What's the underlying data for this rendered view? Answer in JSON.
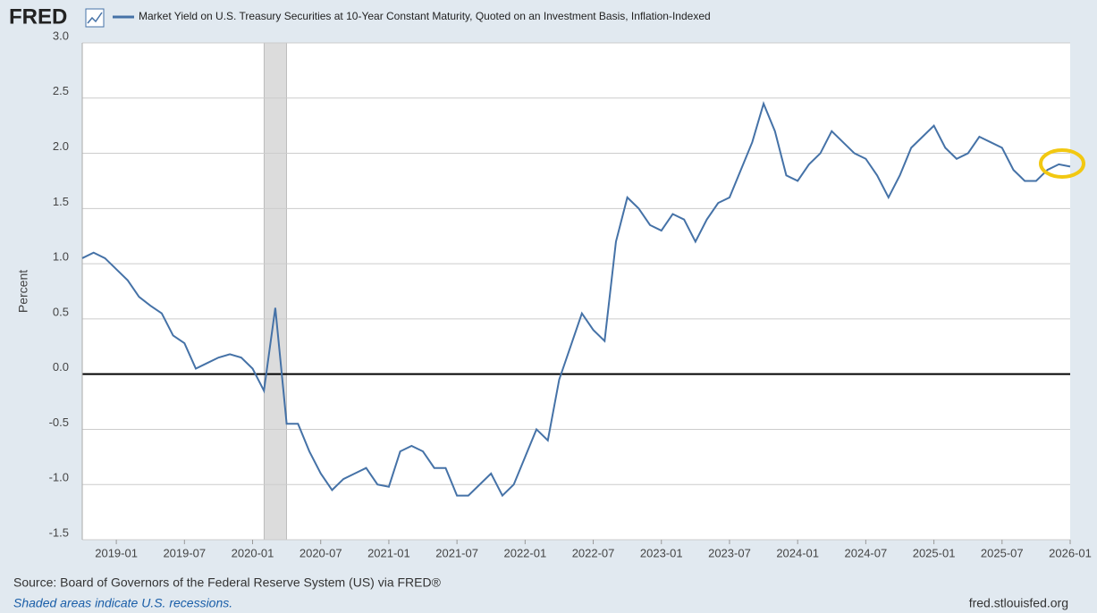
{
  "chart_data": {
    "type": "line",
    "brand": "FRED",
    "title": "Market Yield on U.S. Treasury Securities at 10-Year Constant Maturity, Quoted on an Investment Basis, Inflation-Indexed",
    "y_label": "Percent",
    "source": "Source: Board of Governors of the Federal Reserve System (US) via FRED®",
    "note": "Shaded areas indicate U.S. recessions.",
    "site": "fred.stlouisfed.org",
    "x": [
      "2018-10",
      "2018-11",
      "2018-12",
      "2019-01",
      "2019-02",
      "2019-03",
      "2019-04",
      "2019-05",
      "2019-06",
      "2019-07",
      "2019-08",
      "2019-09",
      "2019-10",
      "2019-11",
      "2019-12",
      "2020-01",
      "2020-02",
      "2020-03",
      "2020-04",
      "2020-05",
      "2020-06",
      "2020-07",
      "2020-08",
      "2020-09",
      "2020-10",
      "2020-11",
      "2020-12",
      "2021-01",
      "2021-02",
      "2021-03",
      "2021-04",
      "2021-05",
      "2021-06",
      "2021-07",
      "2021-08",
      "2021-09",
      "2021-10",
      "2021-11",
      "2021-12",
      "2022-01",
      "2022-02",
      "2022-03",
      "2022-04",
      "2022-05",
      "2022-06",
      "2022-07",
      "2022-08",
      "2022-09",
      "2022-10",
      "2022-11",
      "2022-12",
      "2023-01",
      "2023-02",
      "2023-03",
      "2023-04",
      "2023-05",
      "2023-06",
      "2023-07",
      "2023-08",
      "2023-09",
      "2023-10",
      "2023-11",
      "2023-12",
      "2024-01",
      "2024-02",
      "2024-03",
      "2024-04",
      "2024-05",
      "2024-06",
      "2024-07",
      "2024-08",
      "2024-09",
      "2024-10",
      "2024-11",
      "2024-12",
      "2025-01",
      "2025-02",
      "2025-03",
      "2025-04",
      "2025-05",
      "2025-06",
      "2025-07",
      "2025-08",
      "2025-09",
      "2025-10",
      "2025-11",
      "2025-12",
      "2026-01"
    ],
    "series": [
      {
        "name": "Market Yield on U.S. Treasury Securities at 10-Year Constant Maturity, Quoted on an Investment Basis, Inflation-Indexed",
        "color": "#4572a7",
        "values": [
          1.05,
          1.1,
          1.05,
          0.95,
          0.85,
          0.7,
          0.62,
          0.55,
          0.35,
          0.28,
          0.05,
          0.1,
          0.15,
          0.18,
          0.15,
          0.05,
          -0.15,
          0.6,
          -0.45,
          -0.45,
          -0.7,
          -0.9,
          -1.05,
          -0.95,
          -0.9,
          -0.85,
          -1.0,
          -1.02,
          -0.7,
          -0.65,
          -0.7,
          -0.85,
          -0.85,
          -1.1,
          -1.1,
          -1.0,
          -0.9,
          -1.1,
          -1.0,
          -0.75,
          -0.5,
          -0.6,
          -0.05,
          0.25,
          0.55,
          0.4,
          0.3,
          1.2,
          1.6,
          1.5,
          1.35,
          1.3,
          1.45,
          1.4,
          1.2,
          1.4,
          1.55,
          1.6,
          1.85,
          2.1,
          2.45,
          2.2,
          1.8,
          1.75,
          1.9,
          2.0,
          2.2,
          2.1,
          2.0,
          1.95,
          1.8,
          1.6,
          1.8,
          2.05,
          2.15,
          2.25,
          2.05,
          1.95,
          2.0,
          2.15,
          2.1,
          2.05,
          1.85,
          1.75,
          1.75,
          1.85,
          1.9,
          1.88
        ]
      }
    ],
    "recessions": [
      [
        "2020-02",
        "2020-04"
      ]
    ],
    "xlim": [
      "2018-10",
      "2026-01"
    ],
    "xticks": [
      "2019-01",
      "2019-07",
      "2020-01",
      "2020-07",
      "2021-01",
      "2021-07",
      "2022-01",
      "2022-07",
      "2023-01",
      "2023-07",
      "2024-01",
      "2024-07",
      "2025-01",
      "2025-07",
      "2026-01"
    ],
    "ylim": [
      -1.5,
      3.0
    ],
    "yticks": [
      -1.5,
      {
        "value": -1,
        "label": "-1.0"
      },
      -0.5,
      {
        "value": 0,
        "label": "0.0"
      },
      0.5,
      {
        "value": 1,
        "label": "1.0"
      },
      1.5,
      {
        "value": 2,
        "label": "2.0"
      },
      2.5,
      {
        "value": 3,
        "label": "3.0"
      }
    ],
    "grid": true,
    "zero_line": true
  }
}
